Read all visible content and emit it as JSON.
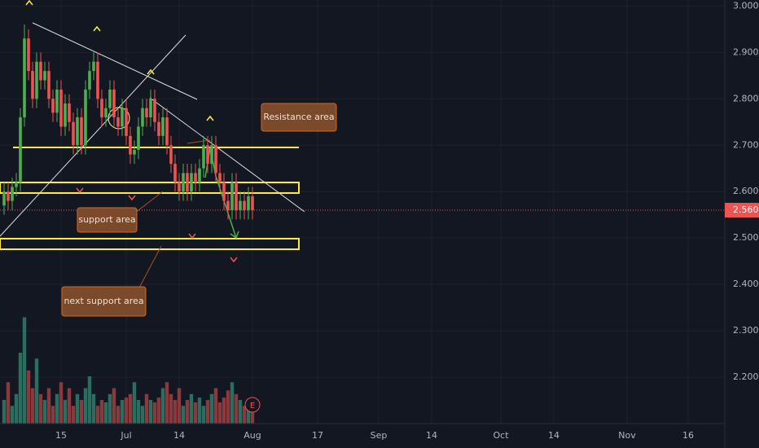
{
  "chart_data": {
    "type": "candlestick",
    "x": [
      0,
      1,
      2,
      3,
      4,
      5,
      6,
      7,
      8,
      9,
      10,
      11,
      12,
      13,
      14,
      15,
      16,
      17,
      18,
      19,
      20,
      21,
      22,
      23,
      24,
      25,
      26,
      27,
      28,
      29,
      30,
      31,
      32,
      33,
      34,
      35,
      36,
      37,
      38,
      39,
      40,
      41,
      42,
      43,
      44,
      45,
      46,
      47,
      48,
      49,
      50,
      51,
      52,
      53,
      54,
      55,
      56,
      57,
      58,
      59,
      60,
      61
    ],
    "open": [
      2.57,
      2.6,
      2.58,
      2.61,
      2.62,
      2.76,
      2.93,
      2.86,
      2.8,
      2.88,
      2.84,
      2.86,
      2.8,
      2.77,
      2.82,
      2.74,
      2.79,
      2.75,
      2.7,
      2.76,
      2.7,
      2.82,
      2.86,
      2.88,
      2.8,
      2.76,
      2.78,
      2.82,
      2.76,
      2.74,
      2.78,
      2.72,
      2.68,
      2.69,
      2.74,
      2.78,
      2.76,
      2.8,
      2.75,
      2.72,
      2.76,
      2.7,
      2.66,
      2.62,
      2.6,
      2.64,
      2.6,
      2.64,
      2.62,
      2.65,
      2.7,
      2.66,
      2.7,
      2.64,
      2.62,
      2.58,
      2.56,
      2.62,
      2.56,
      2.58,
      2.56,
      2.59
    ],
    "high": [
      2.62,
      2.62,
      2.63,
      2.64,
      2.78,
      2.96,
      2.95,
      2.88,
      2.9,
      2.9,
      2.88,
      2.88,
      2.82,
      2.84,
      2.84,
      2.81,
      2.81,
      2.77,
      2.78,
      2.78,
      2.84,
      2.88,
      2.9,
      2.9,
      2.82,
      2.8,
      2.84,
      2.84,
      2.78,
      2.8,
      2.8,
      2.74,
      2.71,
      2.76,
      2.8,
      2.8,
      2.82,
      2.82,
      2.77,
      2.78,
      2.78,
      2.72,
      2.68,
      2.64,
      2.66,
      2.66,
      2.66,
      2.66,
      2.67,
      2.72,
      2.72,
      2.72,
      2.72,
      2.66,
      2.64,
      2.6,
      2.64,
      2.64,
      2.6,
      2.6,
      2.61,
      2.61
    ],
    "low": [
      2.55,
      2.56,
      2.56,
      2.59,
      2.6,
      2.74,
      2.84,
      2.78,
      2.78,
      2.82,
      2.82,
      2.78,
      2.75,
      2.75,
      2.72,
      2.72,
      2.73,
      2.68,
      2.68,
      2.68,
      2.68,
      2.8,
      2.84,
      2.78,
      2.74,
      2.74,
      2.76,
      2.74,
      2.72,
      2.72,
      2.7,
      2.66,
      2.66,
      2.67,
      2.72,
      2.74,
      2.74,
      2.73,
      2.7,
      2.7,
      2.68,
      2.64,
      2.6,
      2.58,
      2.58,
      2.58,
      2.58,
      2.6,
      2.6,
      2.63,
      2.64,
      2.64,
      2.62,
      2.6,
      2.56,
      2.54,
      2.54,
      2.54,
      2.54,
      2.54,
      2.54,
      2.54
    ],
    "close": [
      2.6,
      2.58,
      2.61,
      2.62,
      2.76,
      2.93,
      2.86,
      2.8,
      2.88,
      2.84,
      2.86,
      2.8,
      2.77,
      2.82,
      2.74,
      2.79,
      2.75,
      2.7,
      2.76,
      2.7,
      2.82,
      2.86,
      2.88,
      2.8,
      2.76,
      2.78,
      2.82,
      2.76,
      2.74,
      2.78,
      2.72,
      2.68,
      2.69,
      2.74,
      2.78,
      2.76,
      2.8,
      2.75,
      2.72,
      2.76,
      2.7,
      2.66,
      2.62,
      2.6,
      2.64,
      2.6,
      2.64,
      2.62,
      2.65,
      2.7,
      2.66,
      2.7,
      2.64,
      2.62,
      2.58,
      2.56,
      2.62,
      2.56,
      2.58,
      2.56,
      2.59,
      2.56
    ],
    "volume": [
      20,
      35,
      15,
      25,
      60,
      90,
      45,
      30,
      55,
      25,
      20,
      30,
      15,
      25,
      35,
      20,
      30,
      15,
      25,
      20,
      30,
      40,
      25,
      15,
      20,
      18,
      25,
      30,
      15,
      20,
      22,
      25,
      35,
      20,
      15,
      25,
      20,
      18,
      22,
      30,
      35,
      25,
      20,
      30,
      15,
      20,
      25,
      18,
      22,
      15,
      20,
      25,
      30,
      18,
      22,
      28,
      35,
      25,
      20,
      15,
      18,
      22
    ],
    "vlim": [
      0,
      100
    ],
    "colors": {
      "up": "#4caf50",
      "down": "#ef5350",
      "volume_up": "#2a6e60",
      "volume_down": "#8a3a3c"
    },
    "xlim": [
      -1,
      177
    ],
    "xticks": [
      {
        "value": 14,
        "label": "15"
      },
      {
        "value": 30,
        "label": "Jul"
      },
      {
        "value": 43,
        "label": "14"
      },
      {
        "value": 61,
        "label": "Aug"
      },
      {
        "value": 77,
        "label": "17"
      },
      {
        "value": 92,
        "label": "Sep"
      },
      {
        "value": 105,
        "label": "14"
      },
      {
        "value": 122,
        "label": "Oct"
      },
      {
        "value": 135,
        "label": "14"
      },
      {
        "value": 153,
        "label": "Nov"
      },
      {
        "value": 168,
        "label": "16"
      }
    ],
    "ylim": [
      2.1,
      3.013
    ],
    "yticks": [
      {
        "value": 2.2,
        "label": "2.200"
      },
      {
        "value": 2.3,
        "label": "2.300"
      },
      {
        "value": 2.4,
        "label": "2.400"
      },
      {
        "value": 2.5,
        "label": "2.500"
      },
      {
        "value": 2.6,
        "label": "2.600"
      },
      {
        "value": 2.7,
        "label": "2.700"
      },
      {
        "value": 2.8,
        "label": "2.800"
      },
      {
        "value": 2.9,
        "label": "2.900"
      },
      {
        "value": 3.0,
        "label": "3.000"
      }
    ],
    "grid": true,
    "last_price": {
      "value": 2.56,
      "label": "2.560"
    },
    "event_marker": "E",
    "annotations": [
      {
        "text": "Resistance area"
      },
      {
        "text": "support area"
      },
      {
        "text": "next support area"
      }
    ]
  }
}
